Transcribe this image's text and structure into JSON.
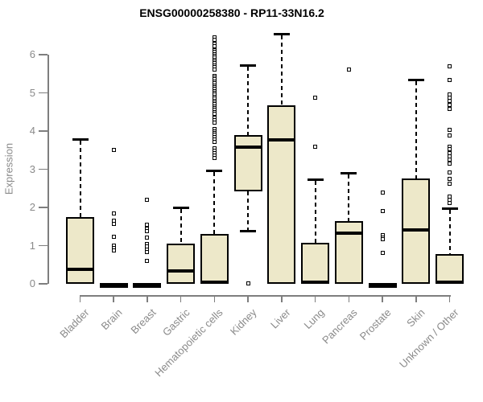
{
  "page": {
    "title": "ENSG00000258380 - RP11-33N16.2"
  },
  "chart_data": {
    "type": "boxplot",
    "title": "ENSG00000258380 - RP11-33N16.2",
    "xlabel": "",
    "ylabel": "Expression",
    "ylim": [
      0,
      6.6
    ],
    "yticks": [
      0,
      1,
      2,
      3,
      4,
      5,
      6
    ],
    "grid": false,
    "legend": "none",
    "categories": [
      "Bladder",
      "Brain",
      "Breast",
      "Gastric",
      "Hematopoietic cells",
      "Kidney",
      "Liver",
      "Lung",
      "Pancreas",
      "Prostate",
      "Skin",
      "Unknown / Other"
    ],
    "series": [
      {
        "name": "Bladder",
        "q1": 0,
        "median": 0.37,
        "q3": 1.74,
        "whisker_low": 0,
        "whisker_high": 3.77,
        "outliers": []
      },
      {
        "name": "Brain",
        "q1": 0,
        "median": 0.01,
        "q3": 0.02,
        "whisker_low": 0,
        "whisker_high": 0.02,
        "outliers": [
          3.5,
          1.85,
          1.66,
          1.57,
          1.24,
          1.0,
          0.93,
          0.87
        ]
      },
      {
        "name": "Breast",
        "q1": 0,
        "median": 0.01,
        "q3": 0.02,
        "whisker_low": 0,
        "whisker_high": 0.02,
        "outliers": [
          2.19,
          1.54,
          1.45,
          1.37,
          1.22,
          1.05,
          0.97,
          0.9,
          0.84,
          0.61
        ]
      },
      {
        "name": "Gastric",
        "q1": 0,
        "median": 0.34,
        "q3": 1.05,
        "whisker_low": 0,
        "whisker_high": 2.0,
        "outliers": []
      },
      {
        "name": "Hematopoietic cells",
        "q1": 0,
        "median": 0.04,
        "q3": 1.31,
        "whisker_low": 0,
        "whisker_high": 2.95,
        "outliers": [
          6.45,
          6.38,
          6.28,
          6.22,
          6.12,
          6.07,
          6.02,
          5.97,
          5.92,
          5.87,
          5.82,
          5.77,
          5.72,
          5.67,
          5.62,
          5.45,
          5.4,
          5.35,
          5.3,
          5.25,
          5.2,
          5.15,
          5.1,
          5.05,
          5.0,
          4.95,
          4.9,
          4.85,
          4.8,
          4.75,
          4.7,
          4.65,
          4.6,
          4.55,
          4.5,
          4.45,
          4.35,
          4.28,
          4.22,
          4.05,
          4.0,
          3.95,
          3.9,
          3.85,
          3.78,
          3.72,
          3.55,
          3.48,
          3.42,
          3.36,
          3.3
        ]
      },
      {
        "name": "Kidney",
        "q1": 2.43,
        "median": 3.57,
        "q3": 3.9,
        "whisker_low": 1.37,
        "whisker_high": 5.72,
        "outliers": [
          0.02
        ]
      },
      {
        "name": "Liver",
        "q1": 0,
        "median": 3.76,
        "q3": 4.68,
        "whisker_low": 0,
        "whisker_high": 6.53,
        "outliers": []
      },
      {
        "name": "Lung",
        "q1": 0,
        "median": 0.04,
        "q3": 1.07,
        "whisker_low": 0,
        "whisker_high": 2.72,
        "outliers": [
          4.88,
          3.6
        ]
      },
      {
        "name": "Pancreas",
        "q1": 0,
        "median": 1.33,
        "q3": 1.64,
        "whisker_low": 0,
        "whisker_high": 2.89,
        "outliers": [
          5.62
        ]
      },
      {
        "name": "Prostate",
        "q1": 0,
        "median": 0.01,
        "q3": 0.02,
        "whisker_low": 0,
        "whisker_high": 0.02,
        "outliers": [
          2.38,
          1.9,
          1.27,
          1.22,
          1.16,
          0.82
        ]
      },
      {
        "name": "Skin",
        "q1": 0,
        "median": 1.42,
        "q3": 2.76,
        "whisker_low": 0,
        "whisker_high": 5.34,
        "outliers": []
      },
      {
        "name": "Unknown / Other",
        "q1": 0,
        "median": 0.04,
        "q3": 0.78,
        "whisker_low": 0,
        "whisker_high": 1.96,
        "outliers": [
          5.69,
          5.33,
          4.96,
          4.88,
          4.78,
          4.68,
          4.57,
          4.04,
          3.89,
          3.6,
          3.52,
          3.43,
          3.34,
          3.26,
          3.14,
          2.91,
          2.74,
          2.63,
          2.29,
          2.21,
          2.12
        ]
      }
    ],
    "colors": {
      "box_fill": "#EDE8C9",
      "box_border": "#000000",
      "axis": "#7E7E7E",
      "label_text": "#8A8A8A",
      "title_text": "#000000"
    }
  }
}
